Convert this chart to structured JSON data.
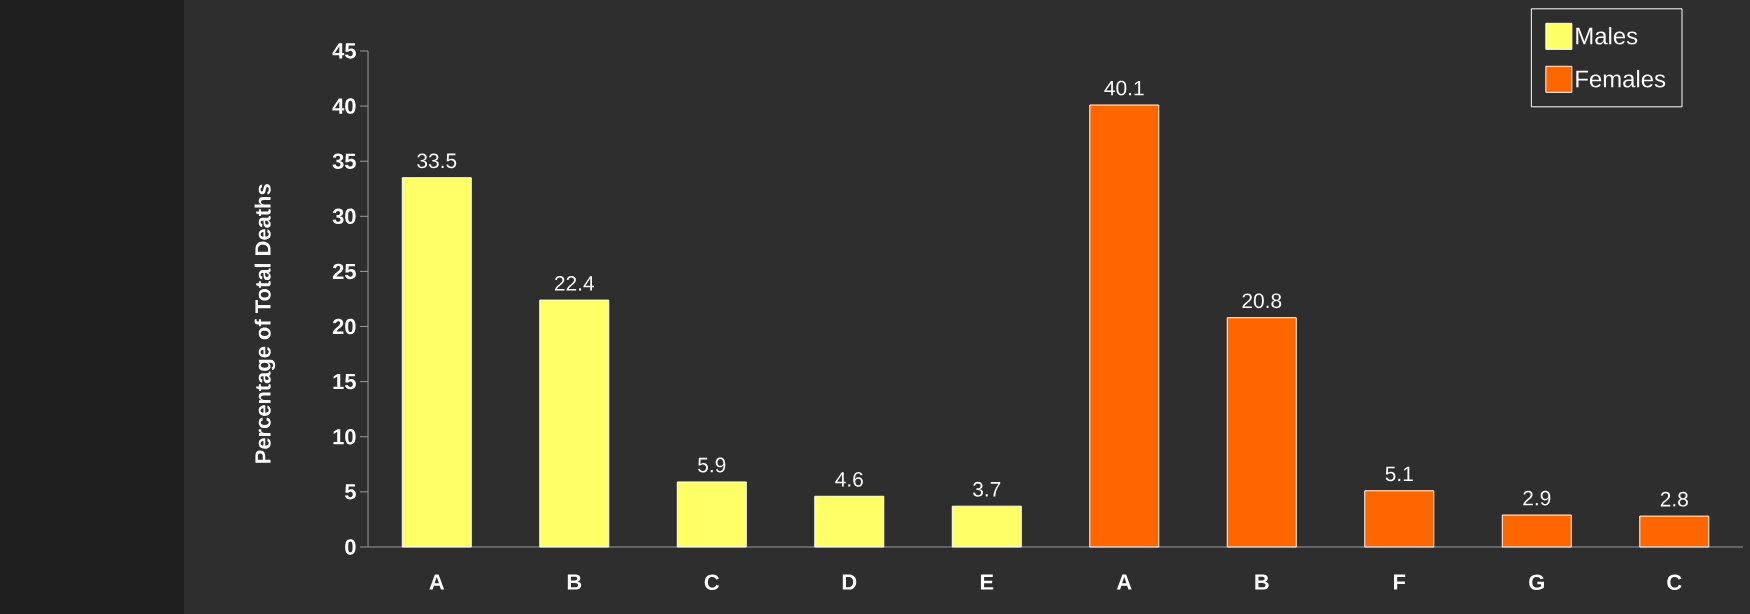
{
  "chart_data": {
    "type": "bar",
    "ylabel": "Percentage of Total Deaths",
    "categories": [
      "A",
      "B",
      "C",
      "D",
      "E",
      "A",
      "B",
      "F",
      "G",
      "C"
    ],
    "series": [
      {
        "name": "Males",
        "color": "#ffff66",
        "values": [
          33.5,
          22.4,
          5.9,
          4.6,
          3.7,
          null,
          null,
          null,
          null,
          null
        ]
      },
      {
        "name": "Females",
        "color": "#ff6600",
        "values": [
          null,
          null,
          null,
          null,
          null,
          40.1,
          20.8,
          5.1,
          2.9,
          2.8
        ]
      }
    ],
    "ylim": [
      0,
      45
    ],
    "yticks": [
      0,
      5,
      10,
      15,
      20,
      25,
      30,
      35,
      40,
      45
    ],
    "data_labels": true,
    "legend": "top right",
    "grid": false
  }
}
